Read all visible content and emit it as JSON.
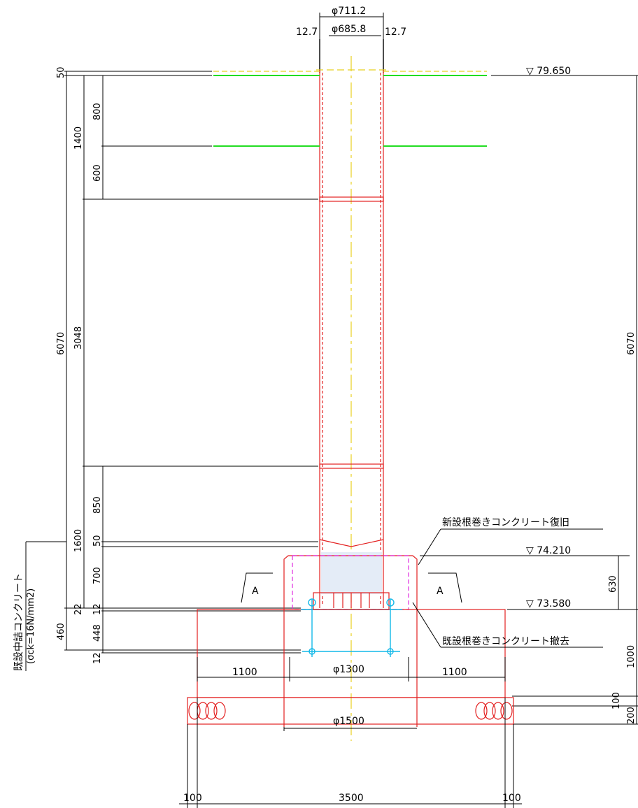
{
  "dimensions": {
    "pipe_outer_diameter": "φ711.2",
    "pipe_inner_diameter": "φ685.8",
    "wall_left": "12.7",
    "wall_right": "12.7",
    "left_total_height": "6070",
    "right_total_height": "6070",
    "left_segment_1400": "1400",
    "left_segment_3048": "3048",
    "left_segment_1600": "1600",
    "left_segment_460": "460",
    "left_top_50": "50",
    "left_800": "800",
    "left_600": "600",
    "left_850": "850",
    "left_50_lower": "50",
    "left_700": "700",
    "left_22": "22",
    "left_12_upper": "12",
    "left_448": "448",
    "left_12_lower": "12",
    "right_630": "630",
    "right_1000": "1000",
    "right_100": "100",
    "right_200": "200",
    "base_left_1100": "1100",
    "base_center_1300": "φ1300",
    "base_right_1100": "1100",
    "pile_1500": "φ1500",
    "bottom_left_100": "100",
    "bottom_total_3500": "3500",
    "bottom_right_100": "100"
  },
  "elevations": {
    "top": "▽ 79.650",
    "middle": "▽ 74.210",
    "bottom": "▽ 73.580"
  },
  "labels": {
    "new_concrete": "新設根巻きコンクリート復旧",
    "removed_concrete": "既設根巻きコンクリート撤去",
    "existing_fill_line1": "既設中詰コンクリート",
    "existing_fill_line2": "(σck=16N/mm2)",
    "section_left": "A",
    "section_right": "A"
  },
  "colors": {
    "pipe_outline": "#e32020",
    "band": "#22dd22",
    "centerline": "#e8d020",
    "anchor_bolts": "#12b8e8",
    "new_concrete_outline": "#e028e0"
  }
}
